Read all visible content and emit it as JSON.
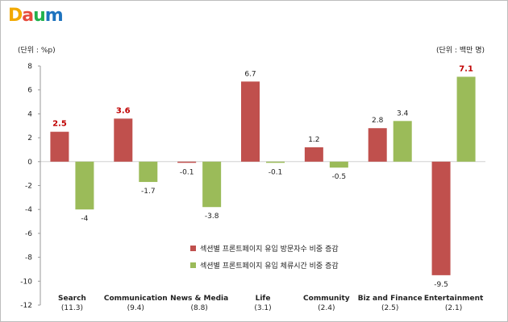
{
  "logo": {
    "text": "Daum",
    "letters": [
      "D",
      "a",
      "u",
      "m"
    ],
    "colors": [
      "#f2a900",
      "#e64b3c",
      "#22b14c",
      "#1e73be"
    ]
  },
  "unit_left": "(단위 : %p)",
  "unit_right": "(단위 : 백만 명)",
  "colors": {
    "series1": "#c0504d",
    "series2": "#9bbb59",
    "label1": "#c00000",
    "label2": "#c00000"
  },
  "chart_data": {
    "type": "bar",
    "categories": [
      {
        "name": "Search",
        "sub": "(11.3)"
      },
      {
        "name": "Communication",
        "sub": "(9.4)"
      },
      {
        "name": "News & Media",
        "sub": "(8.8)"
      },
      {
        "name": "Life",
        "sub": "(3.1)"
      },
      {
        "name": "Community",
        "sub": "(2.4)"
      },
      {
        "name": "Biz and Finance",
        "sub": "(2.5)"
      },
      {
        "name": "Entertainment",
        "sub": "(2.1)"
      }
    ],
    "series": [
      {
        "name": "섹션별 프론트페이지 유입 방문자수 비중 증감",
        "values": [
          2.5,
          3.6,
          -0.1,
          6.7,
          1.2,
          2.8,
          -9.5
        ],
        "labels": [
          "2.5",
          "3.6",
          "-0.1",
          "6.7",
          "1.2",
          "2.8",
          "-9.5"
        ],
        "highlight": [
          true,
          true,
          false,
          false,
          false,
          false,
          false
        ]
      },
      {
        "name": "섹션별 프론트페이지 유입 체류시간 비중 증감",
        "values": [
          -4,
          -1.7,
          -3.8,
          -0.1,
          -0.5,
          3.4,
          7.1
        ],
        "labels": [
          "-4",
          "-1.7",
          "-3.8",
          "-0.1",
          "-0.5",
          "3.4",
          "7.1"
        ],
        "highlight": [
          false,
          false,
          false,
          false,
          false,
          false,
          true
        ]
      }
    ],
    "ylim": [
      -12,
      8
    ],
    "yticks": [
      "-12",
      "-10",
      "-8",
      "-6",
      "-4",
      "-2",
      "0",
      "2",
      "4",
      "6",
      "8"
    ],
    "legend_position": "center-right, lower half of plot"
  }
}
